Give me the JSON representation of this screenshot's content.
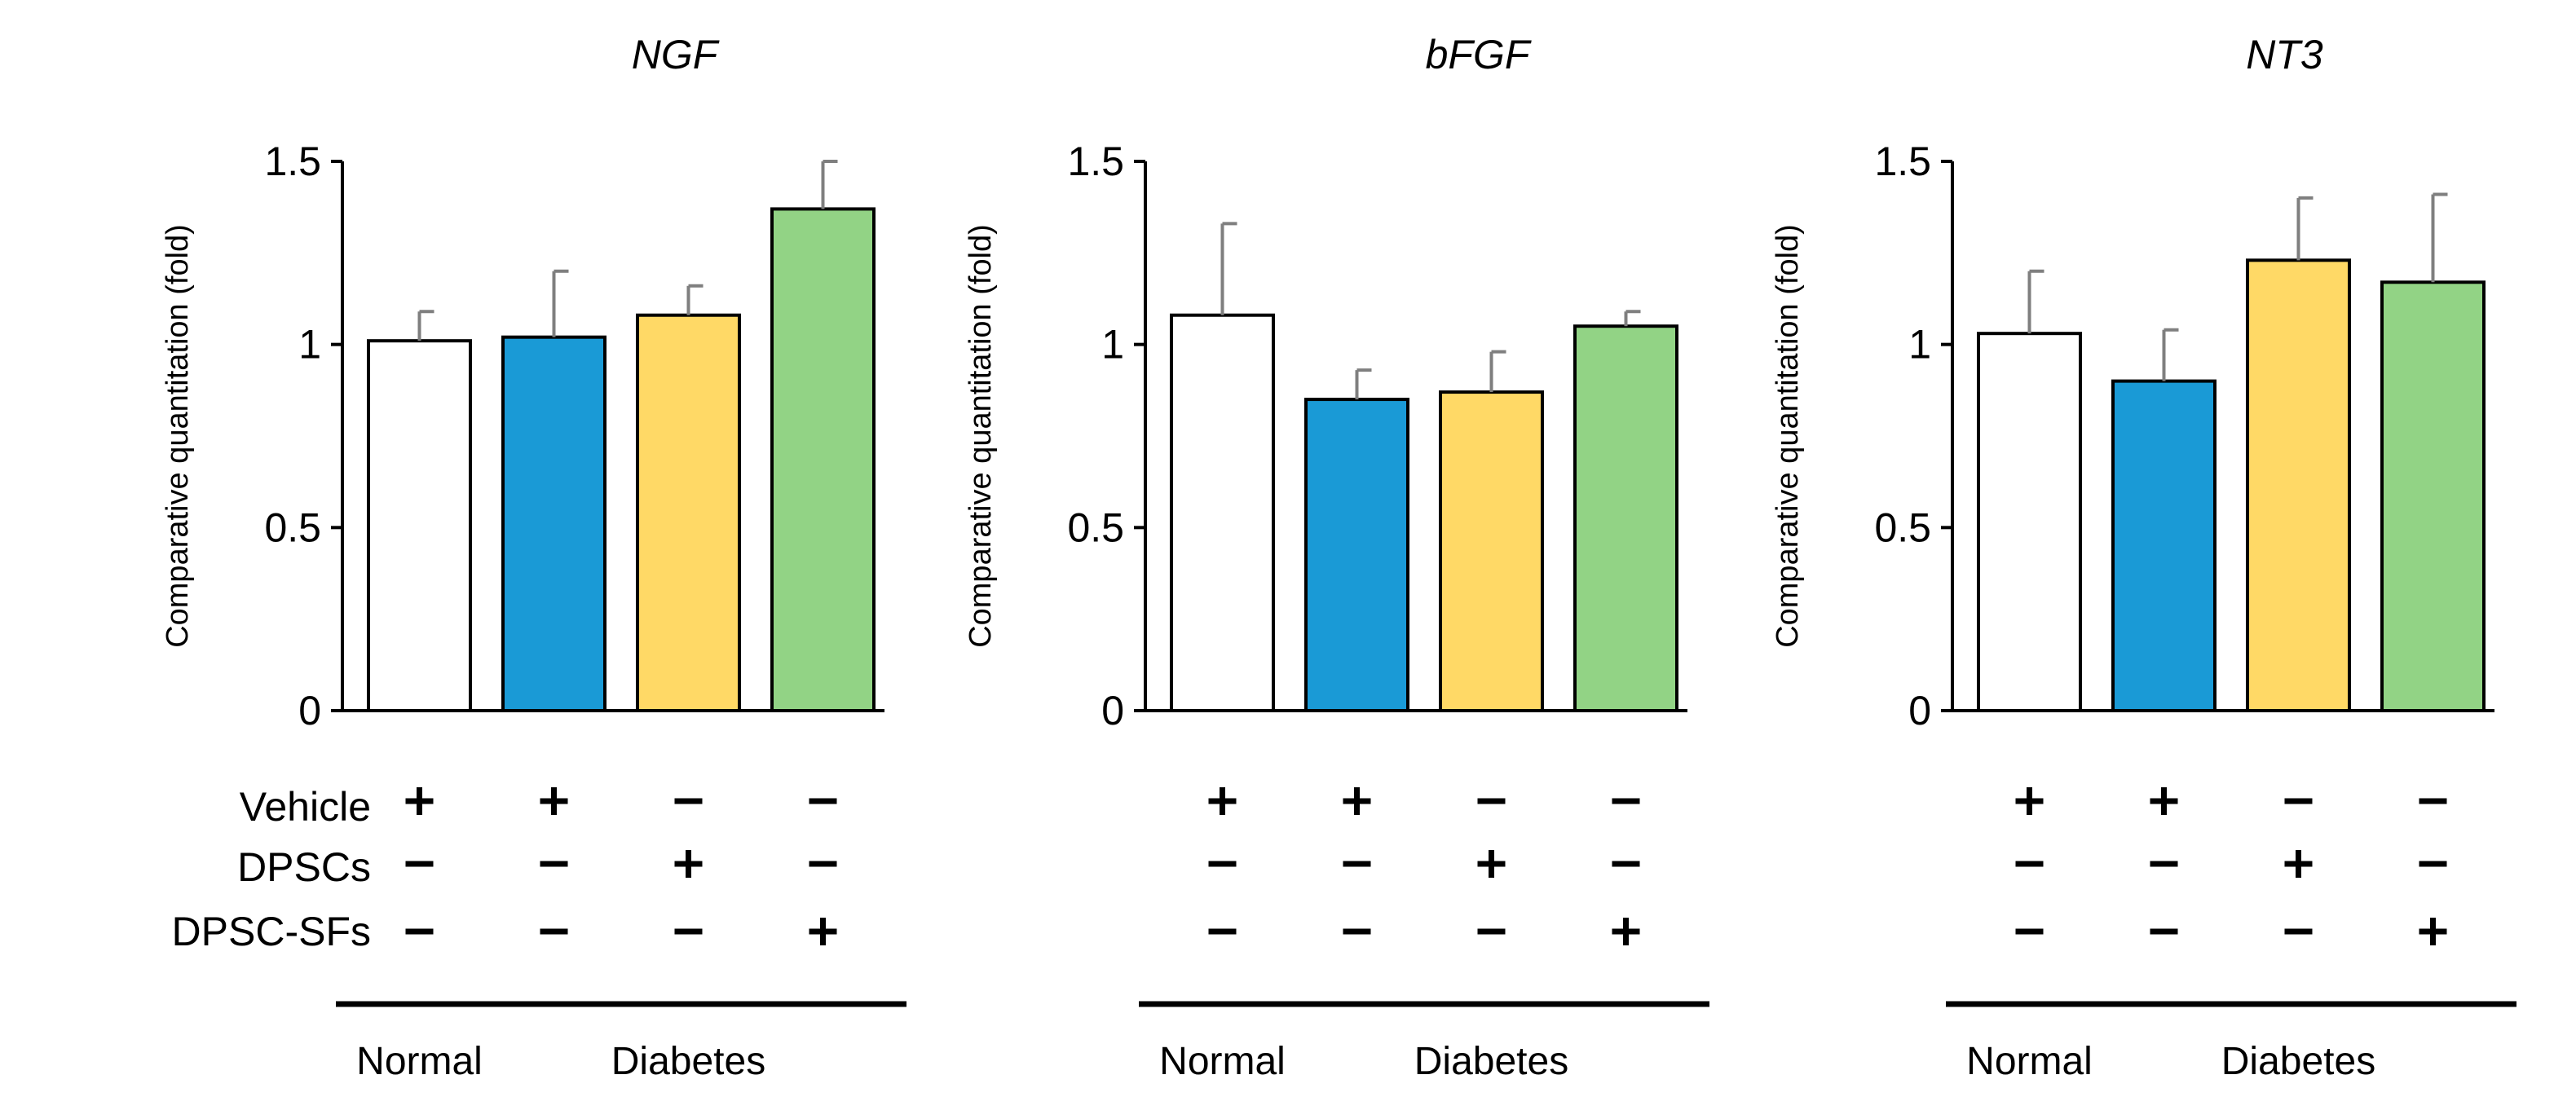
{
  "colors": {
    "Vehicle|Normal": "#ffffff",
    "Vehicle|Diabetes": "#1a9ad6",
    "DPSCs": "#ffd966",
    "DPSC-SFs": "#92d385"
  },
  "treatment_rows": [
    "Vehicle",
    "DPSCs",
    "DPSC-SFs"
  ],
  "treatment_matrix": [
    [
      "+",
      "+",
      "−",
      "−"
    ],
    [
      "−",
      "−",
      "+",
      "−"
    ],
    [
      "−",
      "−",
      "−",
      "+"
    ]
  ],
  "groups": [
    {
      "label": "Normal",
      "bars": [
        0
      ]
    },
    {
      "label": "Diabetes",
      "bars": [
        1,
        2,
        3
      ]
    }
  ],
  "chart_data": [
    {
      "type": "bar",
      "title": "NGF",
      "ylabel": "Comparative quantitation (fold)",
      "ylim": [
        0,
        1.5
      ],
      "yticks": [
        0,
        0.5,
        1,
        1.5
      ],
      "ytick_labels": [
        "0",
        "0.5",
        "1",
        "1.5"
      ],
      "values": [
        1.01,
        1.02,
        1.08,
        1.37
      ],
      "errors": [
        0.08,
        0.18,
        0.08,
        0.13
      ]
    },
    {
      "type": "bar",
      "title": "bFGF",
      "ylabel": "Comparative quantitation (fold)",
      "ylim": [
        0,
        1.5
      ],
      "yticks": [
        0,
        0.5,
        1,
        1.5
      ],
      "ytick_labels": [
        "0",
        "0.5",
        "1",
        "1.5"
      ],
      "values": [
        1.08,
        0.85,
        0.87,
        1.05
      ],
      "errors": [
        0.25,
        0.08,
        0.11,
        0.04
      ]
    },
    {
      "type": "bar",
      "title": "NT3",
      "ylabel": "Comparative quantitation (fold)",
      "ylim": [
        0,
        1.5
      ],
      "yticks": [
        0,
        0.5,
        1,
        1.5
      ],
      "ytick_labels": [
        "0",
        "0.5",
        "1",
        "1.5"
      ],
      "values": [
        1.03,
        0.9,
        1.23,
        1.17
      ],
      "errors": [
        0.17,
        0.14,
        0.17,
        0.24
      ]
    }
  ]
}
